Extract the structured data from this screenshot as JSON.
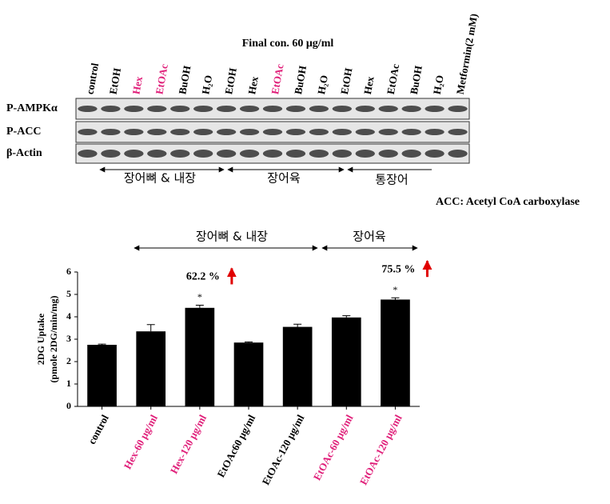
{
  "blot": {
    "concentration": "Final con.  60 μg/ml",
    "lanes": [
      "control",
      "EtOH",
      "Hex",
      "EtOAc",
      "BuOH",
      "H₂O",
      "EtOH",
      "Hex",
      "EtOAc",
      "BuOH",
      "H₂O",
      "EtOH",
      "Hex",
      "EtOAc",
      "BuOH",
      "H₂O",
      "Metformin(2 mM)"
    ],
    "lane_colors": [
      "#000000",
      "#000000",
      "#e0207a",
      "#e0207a",
      "#000000",
      "#000000",
      "#000000",
      "#000000",
      "#e0207a",
      "#000000",
      "#000000",
      "#000000",
      "#000000",
      "#000000",
      "#000000",
      "#000000",
      "#000000"
    ],
    "rows": [
      "P-AMPKα",
      "P-ACC",
      "β-Actin"
    ],
    "groups": [
      "장어뼈 & 내장",
      "장어육",
      "통장어"
    ],
    "footnote": "ACC: Acetyl CoA carboxylase"
  },
  "chart_data": {
    "type": "bar",
    "groups": [
      "장어뼈 & 내장",
      "장어육"
    ],
    "ylabel": [
      "2DG Uptake",
      "(pmole 2DG/min/mg)"
    ],
    "categories": [
      "control",
      "Hex-60 μg/ml",
      "Hex-120 μg/ml",
      "EtOAc60 μg/ml",
      "EtOAc-120 μg/ml",
      "EtOAc-60 μg/ml",
      "EtOAc-120 μg/ml"
    ],
    "category_colors": [
      "#000000",
      "#e0207a",
      "#e0207a",
      "#000000",
      "#000000",
      "#e0207a",
      "#e0207a"
    ],
    "values": [
      2.75,
      3.35,
      4.4,
      2.85,
      3.55,
      3.97,
      4.77
    ],
    "errors": [
      0.03,
      0.3,
      0.12,
      0.03,
      0.12,
      0.08,
      0.08
    ],
    "color": "#000000",
    "ylim": [
      0,
      6
    ],
    "yticks": [
      0,
      1,
      2,
      3,
      4,
      5,
      6
    ],
    "annotations": [
      {
        "text": "62.2 %",
        "index": 2,
        "marker": "*"
      },
      {
        "text": "75.5 %",
        "index": 6,
        "marker": "*"
      }
    ]
  }
}
